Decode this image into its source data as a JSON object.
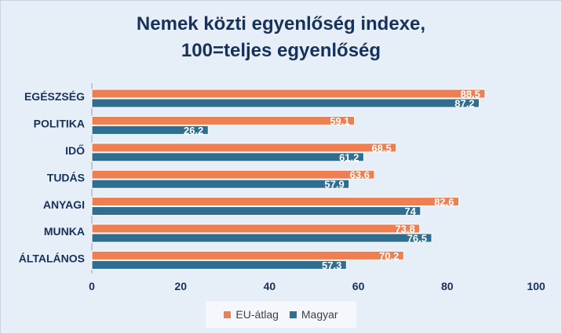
{
  "chart_data": {
    "type": "bar",
    "orientation": "horizontal",
    "title_lines": [
      "Nemek közti egyenlőség indexe,",
      "100=teljes egyenlőség"
    ],
    "categories": [
      "EGÉSZSÉG",
      "POLITIKA",
      "IDŐ",
      "TUDÁS",
      "ANYAGI",
      "MUNKA",
      "ÁLTALÁNOS"
    ],
    "series": [
      {
        "name": "EU-átlag",
        "color": "#ef7f50",
        "values": [
          88.5,
          59.1,
          68.5,
          63.6,
          82.6,
          73.8,
          70.2
        ],
        "labels": [
          "88.5",
          "59.1",
          "68.5",
          "63.6",
          "82.6",
          "73.8",
          "70.2"
        ]
      },
      {
        "name": "Magyar",
        "color": "#2f6e90",
        "values": [
          87.2,
          26.2,
          61.2,
          57.9,
          74,
          76.5,
          57.3
        ],
        "labels": [
          "87.2",
          "26.2",
          "61.2",
          "57.9",
          "74",
          "76.5",
          "57.3"
        ]
      }
    ],
    "xlim": [
      0,
      100
    ],
    "xticks": [
      "0",
      "20",
      "40",
      "60",
      "80",
      "100"
    ],
    "grid": false,
    "legend_position": "bottom"
  }
}
